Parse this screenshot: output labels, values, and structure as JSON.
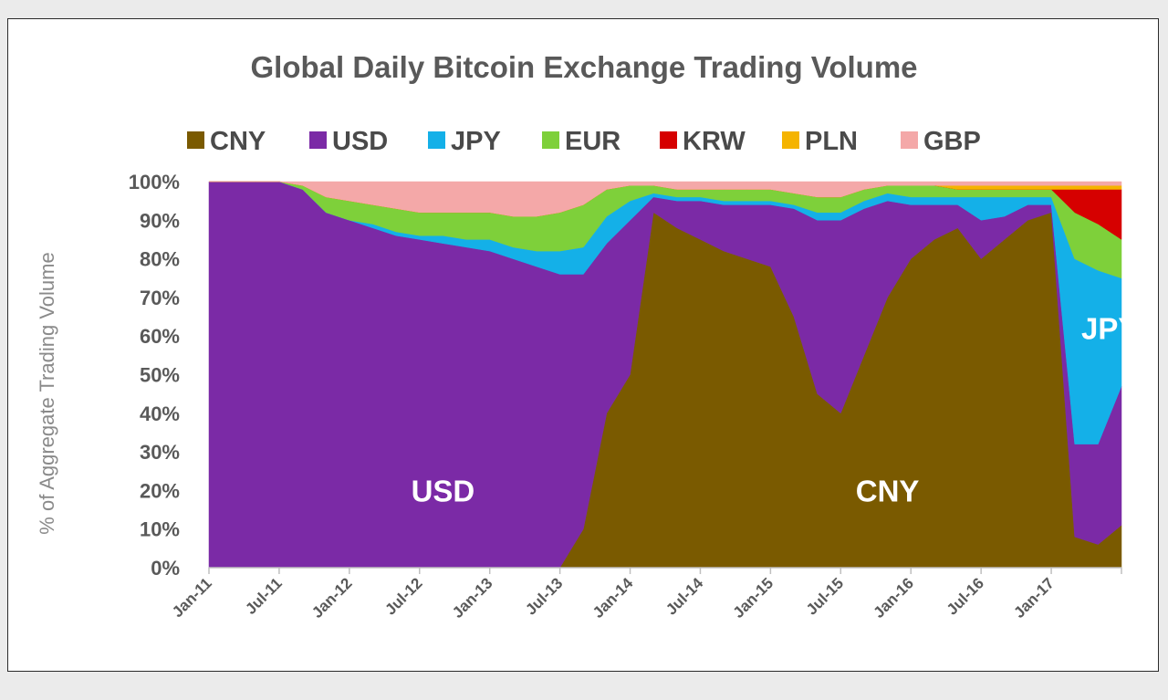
{
  "chart_data": {
    "type": "area",
    "stacked": true,
    "title": "Global Daily Bitcoin Exchange Trading Volume",
    "ylabel": "% of Aggregate Trading Volume",
    "xlabel": "",
    "ylim": [
      0,
      100
    ],
    "y_ticks": [
      "0%",
      "10%",
      "20%",
      "30%",
      "40%",
      "50%",
      "60%",
      "70%",
      "80%",
      "90%",
      "100%"
    ],
    "x_ticks": [
      "Jan-11",
      "Jul-11",
      "Jan-12",
      "Jul-12",
      "Jan-13",
      "Jul-13",
      "Jan-14",
      "Jul-14",
      "Jan-15",
      "Jul-15",
      "Jan-16",
      "Jul-16",
      "Jan-17"
    ],
    "x": [
      "Jan-11",
      "Mar-11",
      "May-11",
      "Jul-11",
      "Sep-11",
      "Nov-11",
      "Jan-12",
      "Mar-12",
      "May-12",
      "Jul-12",
      "Sep-12",
      "Nov-12",
      "Jan-13",
      "Mar-13",
      "May-13",
      "Jul-13",
      "Sep-13",
      "Nov-13",
      "Jan-14",
      "Mar-14",
      "May-14",
      "Jul-14",
      "Sep-14",
      "Nov-14",
      "Jan-15",
      "Mar-15",
      "May-15",
      "Jul-15",
      "Sep-15",
      "Nov-15",
      "Jan-16",
      "Mar-16",
      "May-16",
      "Jul-16",
      "Sep-16",
      "Nov-16",
      "Jan-17",
      "Mar-17",
      "May-17",
      "Jul-17"
    ],
    "legend_position": "top",
    "series": [
      {
        "name": "CNY",
        "color": "#7a5a00",
        "values": [
          0,
          0,
          0,
          0,
          0,
          0,
          0,
          0,
          0,
          0,
          0,
          0,
          0,
          0,
          0,
          0,
          10,
          40,
          50,
          92,
          88,
          85,
          82,
          80,
          78,
          65,
          45,
          40,
          55,
          70,
          80,
          85,
          88,
          80,
          85,
          90,
          92,
          8,
          6,
          11
        ]
      },
      {
        "name": "USD",
        "color": "#7b2aa6",
        "values": [
          100,
          100,
          100,
          100,
          98,
          92,
          90,
          88,
          86,
          85,
          84,
          83,
          82,
          80,
          78,
          76,
          66,
          44,
          40,
          4,
          7,
          10,
          12,
          14,
          16,
          28,
          45,
          50,
          38,
          25,
          14,
          9,
          6,
          10,
          6,
          4,
          2,
          24,
          26,
          36
        ]
      },
      {
        "name": "JPY",
        "color": "#14b0e8",
        "values": [
          0,
          0,
          0,
          0,
          0,
          0,
          0,
          1,
          1,
          1,
          2,
          2,
          3,
          3,
          4,
          6,
          7,
          7,
          5,
          1,
          1,
          1,
          1,
          1,
          1,
          1,
          2,
          2,
          2,
          2,
          2,
          2,
          2,
          6,
          5,
          2,
          2,
          48,
          45,
          28
        ]
      },
      {
        "name": "EUR",
        "color": "#7ed03a",
        "values": [
          0,
          0,
          0,
          0,
          1,
          4,
          5,
          5,
          6,
          6,
          6,
          7,
          7,
          8,
          9,
          10,
          11,
          7,
          4,
          2,
          2,
          2,
          3,
          3,
          3,
          3,
          4,
          4,
          3,
          2,
          3,
          3,
          2,
          2,
          2,
          2,
          2,
          12,
          12,
          10
        ]
      },
      {
        "name": "KRW",
        "color": "#d60000",
        "values": [
          0,
          0,
          0,
          0,
          0,
          0,
          0,
          0,
          0,
          0,
          0,
          0,
          0,
          0,
          0,
          0,
          0,
          0,
          0,
          0,
          0,
          0,
          0,
          0,
          0,
          0,
          0,
          0,
          0,
          0,
          0,
          0,
          0,
          0,
          0,
          0,
          0,
          6,
          9,
          13
        ]
      },
      {
        "name": "PLN",
        "color": "#f5b400",
        "values": [
          0,
          0,
          0,
          0,
          0,
          0,
          0,
          0,
          0,
          0,
          0,
          0,
          0,
          0,
          0,
          0,
          0,
          0,
          0,
          0,
          0,
          0,
          0,
          0,
          0,
          0,
          0,
          0,
          0,
          0,
          0,
          0,
          1,
          1,
          1,
          1,
          1,
          1,
          1,
          1
        ]
      },
      {
        "name": "GBP",
        "color": "#f4a8a8",
        "values": [
          0,
          0,
          0,
          0,
          1,
          4,
          5,
          6,
          7,
          8,
          8,
          8,
          8,
          9,
          9,
          8,
          6,
          2,
          1,
          1,
          2,
          2,
          2,
          2,
          2,
          3,
          4,
          4,
          2,
          1,
          1,
          1,
          1,
          1,
          1,
          1,
          1,
          1,
          1,
          1
        ]
      }
    ],
    "annotations": [
      {
        "text": "USD",
        "x": "Sep-12",
        "y": 20
      },
      {
        "text": "CNY",
        "x": "Nov-15",
        "y": 20
      },
      {
        "text": "JPY",
        "x": "Jun-17",
        "y": 62
      }
    ]
  }
}
